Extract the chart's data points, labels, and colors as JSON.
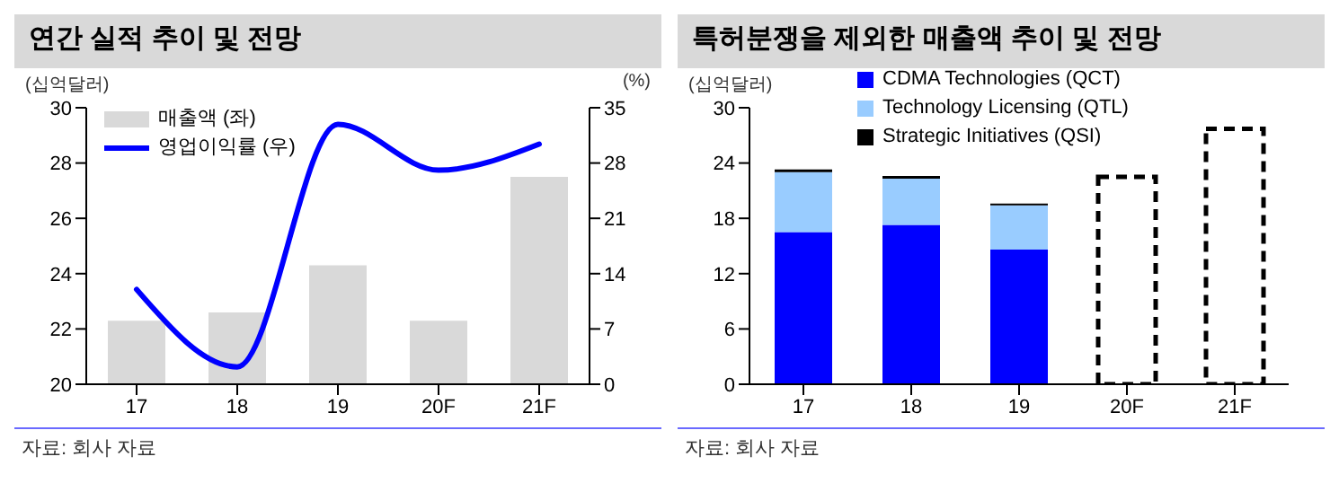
{
  "chart_data": [
    {
      "type": "bar",
      "title": "연간 실적 추이 및 전망",
      "ylabel": "(십억달러)",
      "y2label": "(%)",
      "categories": [
        "17",
        "18",
        "19",
        "20F",
        "21F"
      ],
      "series": [
        {
          "name": "매출액 (좌)",
          "color": "#d9d9d9",
          "values": [
            22.3,
            22.6,
            24.3,
            22.3,
            27.5
          ]
        },
        {
          "name": "영업이익률 (우)",
          "type": "line",
          "axis": "y2",
          "color": "#0000ff",
          "values": [
            12,
            2.2,
            32.9,
            27.1,
            30.4
          ]
        }
      ],
      "ylim": [
        20,
        30
      ],
      "yticks": [
        20,
        22,
        24,
        26,
        28,
        30
      ],
      "y2lim": [
        0,
        35
      ],
      "y2ticks": [
        0,
        7,
        14,
        21,
        28,
        35
      ],
      "legend": "top left",
      "marker": "none",
      "annotations": [
        "자료: 회사 자료"
      ]
    },
    {
      "type": "bar",
      "title": "특허분쟁을 제외한 매출액 추이 및 전망",
      "ylabel": "(십억달러)",
      "categories": [
        "17",
        "18",
        "19",
        "20F",
        "21F"
      ],
      "stacked": true,
      "series": [
        {
          "name": "CDMA Technologies (QCT)",
          "color": "#0000ff",
          "values": [
            16.5,
            17.3,
            14.6,
            null,
            null
          ]
        },
        {
          "name": "Technology Licensing (QTL)",
          "color": "#99ccff",
          "values": [
            6.5,
            5.0,
            4.8,
            null,
            null
          ]
        },
        {
          "name": "Strategic Initiatives (QSI)",
          "color": "#000000",
          "values": [
            0.3,
            0.3,
            0.2,
            null,
            null
          ]
        },
        {
          "color": "#000000",
          "line_style": "dashed",
          "values": [
            null,
            null,
            null,
            22.5,
            27.7
          ]
        }
      ],
      "ylim": [
        0,
        30
      ],
      "yticks": [
        0,
        6,
        12,
        18,
        24,
        30
      ],
      "legend": "top",
      "annotations": [
        "자료: 회사 자료"
      ]
    }
  ]
}
